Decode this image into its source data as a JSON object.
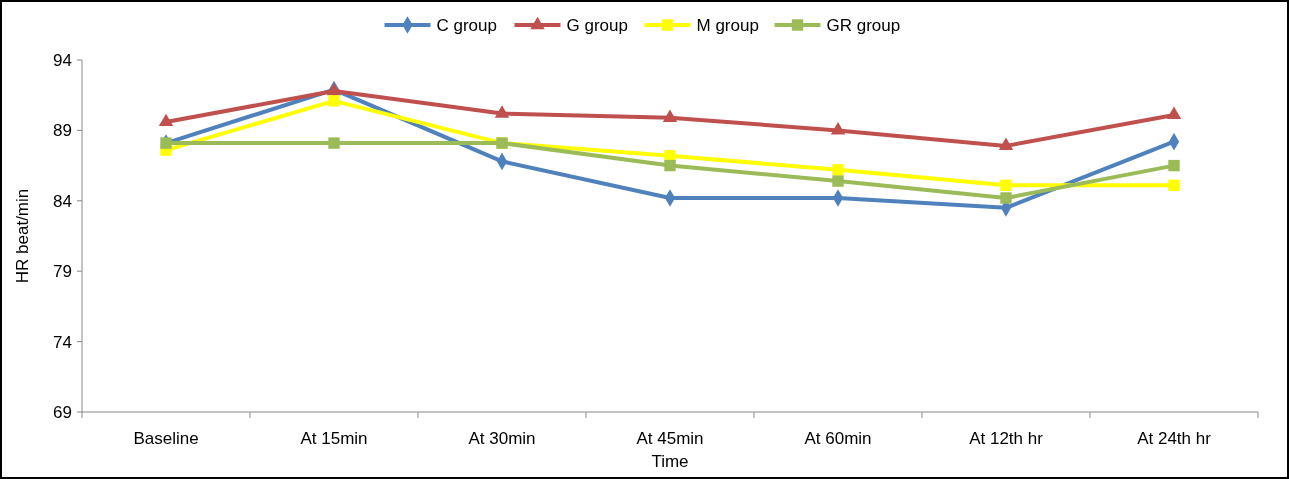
{
  "chart_data": {
    "type": "line",
    "xlabel": "Time",
    "ylabel": "HR beat/min",
    "categories": [
      "Baseline",
      "At 15min",
      "At 30min",
      "At 45min",
      "At 60min",
      "At 12th hr",
      "At 24th hr"
    ],
    "ylim": [
      69,
      94
    ],
    "yticks": [
      69,
      74,
      79,
      84,
      89,
      94
    ],
    "grid": false,
    "legend": "top",
    "line_style": "solid",
    "series": [
      {
        "name": "C group",
        "color": "#4f81bd",
        "marker": "diamond",
        "values": [
          88.1,
          91.9,
          86.8,
          84.2,
          84.2,
          83.5,
          88.2
        ]
      },
      {
        "name": "G group",
        "color": "#c0504d",
        "marker": "triangle",
        "values": [
          89.6,
          91.8,
          90.2,
          89.9,
          89.0,
          87.9,
          90.1
        ]
      },
      {
        "name": "M group",
        "color": "#ffff00",
        "marker": "square",
        "values": [
          87.6,
          91.1,
          88.1,
          87.2,
          86.2,
          85.1,
          85.1
        ]
      },
      {
        "name": "GR group",
        "color": "#9bbb59",
        "marker": "square",
        "values": [
          88.1,
          88.1,
          88.1,
          86.5,
          85.4,
          84.2,
          86.5
        ]
      }
    ]
  }
}
